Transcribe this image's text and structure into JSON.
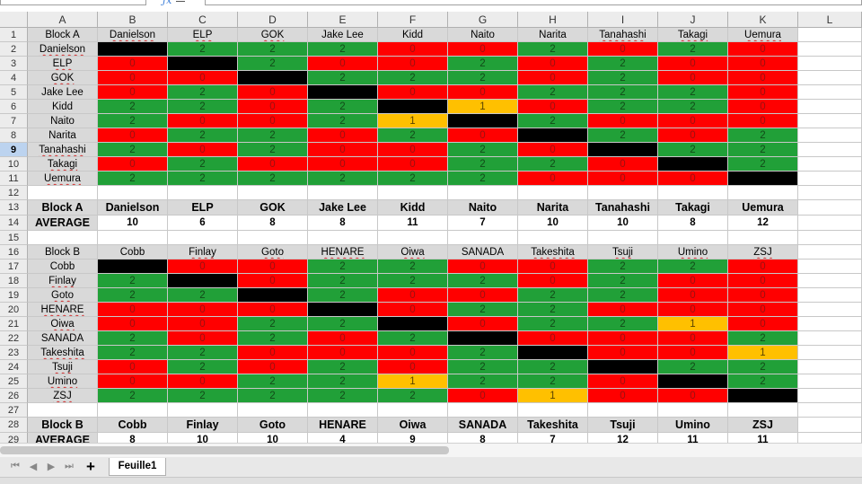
{
  "column_letters": [
    "A",
    "B",
    "C",
    "D",
    "E",
    "F",
    "G",
    "H",
    "I",
    "J",
    "K",
    "L"
  ],
  "block_a": {
    "label": "Block A",
    "wrestlers": [
      "Danielson",
      "ELP",
      "GOK",
      "Jake Lee",
      "Kidd",
      "Naito",
      "Narita",
      "Tanahashi",
      "Takagi",
      "Uemura"
    ],
    "results": [
      [
        null,
        "2",
        "2",
        "2",
        "0",
        "0",
        "2",
        "0",
        "2",
        "0"
      ],
      [
        "0",
        null,
        "2",
        "0",
        "0",
        "2",
        "0",
        "2",
        "0",
        "0"
      ],
      [
        "0",
        "0",
        null,
        "2",
        "2",
        "2",
        "0",
        "2",
        "0",
        "0"
      ],
      [
        "0",
        "2",
        "0",
        null,
        "0",
        "0",
        "2",
        "2",
        "2",
        "0"
      ],
      [
        "2",
        "2",
        "0",
        "2",
        null,
        "1",
        "0",
        "2",
        "2",
        "0"
      ],
      [
        "2",
        "0",
        "0",
        "2",
        "1",
        null,
        "2",
        "0",
        "0",
        "0"
      ],
      [
        "0",
        "2",
        "2",
        "0",
        "2",
        "0",
        null,
        "2",
        "0",
        "2"
      ],
      [
        "2",
        "0",
        "2",
        "0",
        "0",
        "2",
        "0",
        null,
        "2",
        "2"
      ],
      [
        "0",
        "2",
        "0",
        "0",
        "0",
        "2",
        "2",
        "0",
        null,
        "2"
      ],
      [
        "2",
        "2",
        "2",
        "2",
        "2",
        "2",
        "0",
        "0",
        "0",
        null
      ]
    ],
    "colors": [
      [
        "B",
        "G",
        "G",
        "G",
        "R",
        "R",
        "G",
        "R",
        "G",
        "R"
      ],
      [
        "R",
        "B",
        "G",
        "R",
        "R",
        "G",
        "R",
        "G",
        "R",
        "R"
      ],
      [
        "R",
        "R",
        "B",
        "G",
        "G",
        "G",
        "R",
        "G",
        "R",
        "R"
      ],
      [
        "R",
        "G",
        "R",
        "B",
        "R",
        "R",
        "G",
        "G",
        "G",
        "R"
      ],
      [
        "G",
        "G",
        "R",
        "G",
        "B",
        "Y",
        "R",
        "G",
        "G",
        "R"
      ],
      [
        "G",
        "R",
        "R",
        "G",
        "Y",
        "B",
        "G",
        "R",
        "R",
        "R"
      ],
      [
        "R",
        "G",
        "G",
        "R",
        "G",
        "R",
        "B",
        "G",
        "R",
        "G"
      ],
      [
        "G",
        "R",
        "G",
        "R",
        "R",
        "G",
        "R",
        "B",
        "G",
        "G"
      ],
      [
        "R",
        "G",
        "R",
        "R",
        "R",
        "G",
        "G",
        "R",
        "B",
        "G"
      ],
      [
        "G",
        "G",
        "G",
        "G",
        "G",
        "G",
        "R",
        "R",
        "R",
        "B"
      ]
    ],
    "average_label": "AVERAGE",
    "averages": [
      "10",
      "6",
      "8",
      "8",
      "11",
      "7",
      "10",
      "10",
      "8",
      "12"
    ]
  },
  "block_b": {
    "label": "Block B",
    "wrestlers": [
      "Cobb",
      "Finlay",
      "Goto",
      "HENARE",
      "Oiwa",
      "SANADA",
      "Takeshita",
      "Tsuji",
      "Umino",
      "ZSJ"
    ],
    "results": [
      [
        null,
        "0",
        "0",
        "2",
        "2",
        "0",
        "0",
        "2",
        "2",
        "0"
      ],
      [
        "2",
        null,
        "0",
        "2",
        "2",
        "2",
        "0",
        "2",
        "0",
        "0"
      ],
      [
        "2",
        "2",
        null,
        "2",
        "0",
        "0",
        "2",
        "2",
        "0",
        "0"
      ],
      [
        "0",
        "0",
        "0",
        null,
        "0",
        "2",
        "2",
        "0",
        "0",
        "0"
      ],
      [
        "0",
        "0",
        "2",
        "2",
        null,
        "0",
        "2",
        "2",
        "1",
        "0"
      ],
      [
        "2",
        "0",
        "2",
        "0",
        "2",
        null,
        "0",
        "0",
        "0",
        "2"
      ],
      [
        "2",
        "2",
        "0",
        "0",
        "0",
        "2",
        null,
        "0",
        "0",
        "1"
      ],
      [
        "0",
        "2",
        "0",
        "2",
        "0",
        "2",
        "2",
        null,
        "2",
        "2"
      ],
      [
        "0",
        "0",
        "2",
        "2",
        "1",
        "2",
        "2",
        "0",
        null,
        "2"
      ],
      [
        "2",
        "2",
        "2",
        "2",
        "2",
        "0",
        "1",
        "0",
        "0",
        null
      ]
    ],
    "colors": [
      [
        "B",
        "R",
        "R",
        "G",
        "G",
        "R",
        "R",
        "G",
        "G",
        "R"
      ],
      [
        "G",
        "B",
        "R",
        "G",
        "G",
        "G",
        "R",
        "G",
        "R",
        "R"
      ],
      [
        "G",
        "G",
        "B",
        "G",
        "R",
        "R",
        "G",
        "G",
        "R",
        "R"
      ],
      [
        "R",
        "R",
        "R",
        "B",
        "R",
        "G",
        "G",
        "R",
        "R",
        "R"
      ],
      [
        "R",
        "R",
        "G",
        "G",
        "B",
        "R",
        "G",
        "G",
        "Y",
        "R"
      ],
      [
        "G",
        "R",
        "G",
        "R",
        "G",
        "B",
        "R",
        "R",
        "R",
        "G"
      ],
      [
        "G",
        "G",
        "R",
        "R",
        "R",
        "G",
        "B",
        "R",
        "R",
        "Y"
      ],
      [
        "R",
        "G",
        "R",
        "G",
        "R",
        "G",
        "G",
        "B",
        "G",
        "G"
      ],
      [
        "R",
        "R",
        "G",
        "G",
        "Y",
        "G",
        "G",
        "R",
        "B",
        "G"
      ],
      [
        "G",
        "G",
        "G",
        "G",
        "G",
        "R",
        "Y",
        "R",
        "R",
        "B"
      ]
    ],
    "average_label": "AVERAGE",
    "averages": [
      "8",
      "10",
      "10",
      "4",
      "9",
      "8",
      "7",
      "12",
      "11",
      "11"
    ]
  },
  "sheet_tab": "Feuille1",
  "colors_legend": {
    "R": "#ff0000",
    "G": "#21a038",
    "Y": "#ffc000",
    "B": "#000000"
  }
}
